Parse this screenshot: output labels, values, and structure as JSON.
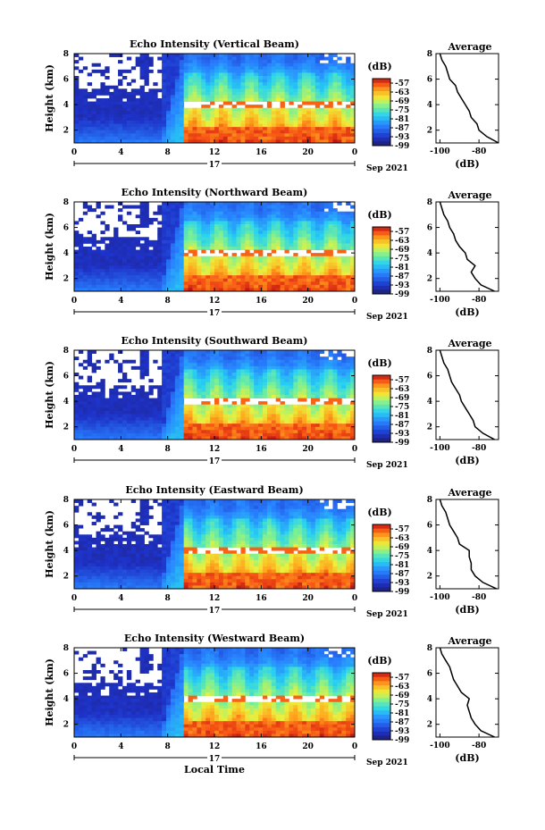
{
  "chart_data": [
    {
      "type": "heatmap",
      "title": "Echo Intensity (Vertical Beam)",
      "xlabel": "",
      "ylabel": "Height (km)",
      "x_ticks": [
        "0",
        "4",
        "8",
        "12",
        "16",
        "20",
        "0"
      ],
      "x_range": [
        0,
        24
      ],
      "y_ticks": [
        "2",
        "4",
        "6",
        "8"
      ],
      "y_range": [
        1,
        8
      ],
      "day_label": "17",
      "date_label": "Sep 2021",
      "colorbar": {
        "unit": "(dB)",
        "ticks": [
          "-57",
          "-63",
          "-69",
          "-75",
          "-81",
          "-87",
          "-93",
          "-99"
        ],
        "range": [
          -99,
          -54
        ]
      },
      "average_profile": {
        "title": "Average",
        "xlabel": "(dB)",
        "x_ticks": [
          "-100",
          "-80"
        ],
        "xlim": [
          -102,
          -70
        ],
        "y_ticks": [
          "2",
          "4",
          "6",
          "8"
        ],
        "points": [
          [
            -70,
            1
          ],
          [
            -76,
            1.5
          ],
          [
            -80,
            2
          ],
          [
            -81,
            2.5
          ],
          [
            -84,
            3
          ],
          [
            -85,
            3.5
          ],
          [
            -87,
            4
          ],
          [
            -89,
            4.5
          ],
          [
            -91,
            5
          ],
          [
            -92,
            5.5
          ],
          [
            -95,
            6
          ],
          [
            -96,
            6.5
          ],
          [
            -97,
            7
          ],
          [
            -99,
            7.5
          ],
          [
            -100,
            8
          ]
        ]
      }
    },
    {
      "type": "heatmap",
      "title": "Echo Intensity (Northward Beam)",
      "xlabel": "",
      "ylabel": "Height (km)",
      "x_ticks": [
        "0",
        "4",
        "8",
        "12",
        "16",
        "20",
        "0"
      ],
      "x_range": [
        0,
        24
      ],
      "y_ticks": [
        "2",
        "4",
        "6",
        "8"
      ],
      "y_range": [
        1,
        8
      ],
      "day_label": "17",
      "date_label": "Sep 2021",
      "colorbar": {
        "unit": "(dB)",
        "ticks": [
          "-57",
          "-63",
          "-69",
          "-75",
          "-81",
          "-87",
          "-93",
          "-99"
        ],
        "range": [
          -99,
          -54
        ]
      },
      "average_profile": {
        "title": "Average",
        "xlabel": "(dB)",
        "x_ticks": [
          "-100",
          "-80"
        ],
        "xlim": [
          -102,
          -70
        ],
        "y_ticks": [
          "2",
          "4",
          "6",
          "8"
        ],
        "points": [
          [
            -72,
            1
          ],
          [
            -79,
            1.5
          ],
          [
            -82,
            2
          ],
          [
            -84,
            2.5
          ],
          [
            -82,
            3
          ],
          [
            -86,
            3.5
          ],
          [
            -87,
            4
          ],
          [
            -90,
            4.5
          ],
          [
            -92,
            5
          ],
          [
            -93,
            5.5
          ],
          [
            -95,
            6
          ],
          [
            -96,
            6.5
          ],
          [
            -98,
            7
          ],
          [
            -99,
            7.5
          ],
          [
            -100,
            8
          ]
        ]
      }
    },
    {
      "type": "heatmap",
      "title": "Echo Intensity (Southward Beam)",
      "xlabel": "",
      "ylabel": "Height (km)",
      "x_ticks": [
        "0",
        "4",
        "8",
        "12",
        "16",
        "20",
        "0"
      ],
      "x_range": [
        0,
        24
      ],
      "y_ticks": [
        "2",
        "4",
        "6",
        "8"
      ],
      "y_range": [
        1,
        8
      ],
      "day_label": "17",
      "date_label": "Sep 2021",
      "colorbar": {
        "unit": "(dB)",
        "ticks": [
          "-57",
          "-63",
          "-69",
          "-75",
          "-81",
          "-87",
          "-93",
          "-99"
        ],
        "range": [
          -99,
          -54
        ]
      },
      "average_profile": {
        "title": "Average",
        "xlabel": "(dB)",
        "x_ticks": [
          "-100",
          "-80"
        ],
        "xlim": [
          -102,
          -70
        ],
        "y_ticks": [
          "2",
          "4",
          "6",
          "8"
        ],
        "points": [
          [
            -72,
            1
          ],
          [
            -78,
            1.5
          ],
          [
            -82,
            2
          ],
          [
            -83,
            2.5
          ],
          [
            -85,
            3
          ],
          [
            -87,
            3.5
          ],
          [
            -89,
            4
          ],
          [
            -90,
            4.5
          ],
          [
            -92,
            5
          ],
          [
            -94,
            5.5
          ],
          [
            -95,
            6
          ],
          [
            -96,
            6.5
          ],
          [
            -98,
            7
          ],
          [
            -99,
            7.5
          ],
          [
            -100,
            8
          ]
        ]
      }
    },
    {
      "type": "heatmap",
      "title": "Echo Intensity (Eastward Beam)",
      "xlabel": "",
      "ylabel": "Height (km)",
      "x_ticks": [
        "0",
        "4",
        "8",
        "12",
        "16",
        "20",
        "0"
      ],
      "x_range": [
        0,
        24
      ],
      "y_ticks": [
        "2",
        "4",
        "6",
        "8"
      ],
      "y_range": [
        1,
        8
      ],
      "day_label": "17",
      "date_label": "Sep 2021",
      "colorbar": {
        "unit": "(dB)",
        "ticks": [
          "-57",
          "-63",
          "-69",
          "-75",
          "-81",
          "-87",
          "-93",
          "-99"
        ],
        "range": [
          -99,
          -54
        ]
      },
      "average_profile": {
        "title": "Average",
        "xlabel": "(dB)",
        "x_ticks": [
          "-100",
          "-80"
        ],
        "xlim": [
          -102,
          -70
        ],
        "y_ticks": [
          "2",
          "4",
          "6",
          "8"
        ],
        "points": [
          [
            -71,
            1
          ],
          [
            -78,
            1.5
          ],
          [
            -82,
            2
          ],
          [
            -84,
            2.5
          ],
          [
            -84,
            3
          ],
          [
            -85,
            3.5
          ],
          [
            -85,
            4
          ],
          [
            -90,
            4.5
          ],
          [
            -91,
            5
          ],
          [
            -93,
            5.5
          ],
          [
            -95,
            6
          ],
          [
            -96,
            6.5
          ],
          [
            -97,
            7
          ],
          [
            -99,
            7.5
          ],
          [
            -100,
            8
          ]
        ]
      }
    },
    {
      "type": "heatmap",
      "title": "Echo Intensity (Westward Beam)",
      "xlabel": "Local Time",
      "ylabel": "Height (km)",
      "x_ticks": [
        "0",
        "4",
        "8",
        "12",
        "16",
        "20",
        "0"
      ],
      "x_range": [
        0,
        24
      ],
      "y_ticks": [
        "2",
        "4",
        "6",
        "8"
      ],
      "y_range": [
        1,
        8
      ],
      "day_label": "17",
      "date_label": "Sep 2021",
      "colorbar": {
        "unit": "(dB)",
        "ticks": [
          "-57",
          "-63",
          "-69",
          "-75",
          "-81",
          "-87",
          "-93",
          "-99"
        ],
        "range": [
          -99,
          -54
        ]
      },
      "average_profile": {
        "title": "Average",
        "xlabel": "(dB)",
        "x_ticks": [
          "-100",
          "-80"
        ],
        "xlim": [
          -102,
          -70
        ],
        "y_ticks": [
          "2",
          "4",
          "6",
          "8"
        ],
        "points": [
          [
            -72,
            1
          ],
          [
            -79,
            1.5
          ],
          [
            -82,
            2
          ],
          [
            -84,
            2.5
          ],
          [
            -85,
            3
          ],
          [
            -86,
            3.5
          ],
          [
            -85,
            4
          ],
          [
            -89,
            4.5
          ],
          [
            -91,
            5
          ],
          [
            -93,
            5.5
          ],
          [
            -94,
            6
          ],
          [
            -95,
            6.5
          ],
          [
            -97,
            7
          ],
          [
            -99,
            7.5
          ],
          [
            -100,
            8
          ]
        ]
      }
    }
  ]
}
